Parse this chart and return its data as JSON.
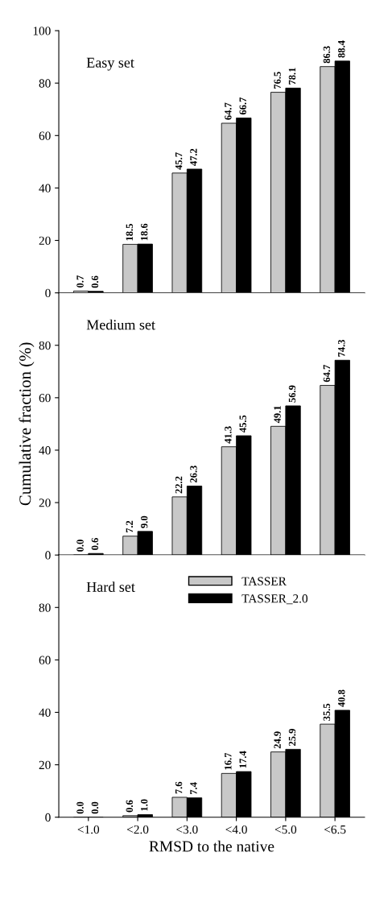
{
  "chart_data": [
    {
      "type": "bar",
      "title": "Easy set",
      "categories": [
        null,
        null,
        null,
        null,
        null,
        null
      ],
      "series": [
        {
          "color": "#c8c8c8",
          "values": [
            0.7,
            18.5,
            45.7,
            64.7,
            76.5,
            86.3
          ],
          "value_labels": [
            "0.7",
            "18.5",
            "45.7",
            "64.7",
            "76.5",
            "86.3"
          ]
        },
        {
          "color": "#000000",
          "values": [
            0.6,
            18.6,
            47.2,
            66.7,
            78.1,
            88.4
          ],
          "value_labels": [
            "0.6",
            "18.6",
            "47.2",
            "66.7",
            "78.1",
            "88.4"
          ]
        }
      ],
      "ylim": [
        0,
        100
      ],
      "yticks": [
        0,
        20,
        40,
        60,
        80,
        100
      ],
      "tick_labels": "y"
    },
    {
      "type": "bar",
      "title": "Medium set",
      "ylabel": "Cumulative fraction (%)",
      "categories": [
        null,
        null,
        null,
        null,
        null,
        null
      ],
      "series": [
        {
          "color": "#c8c8c8",
          "values": [
            0.0,
            7.2,
            22.2,
            41.3,
            49.1,
            64.7
          ],
          "value_labels": [
            "0.0",
            "7.2",
            "22.2",
            "41.3",
            "49.1",
            "64.7"
          ]
        },
        {
          "color": "#000000",
          "values": [
            0.6,
            9.0,
            26.3,
            45.5,
            56.9,
            74.3
          ],
          "value_labels": [
            "0.6",
            "9.0",
            "26.3",
            "45.5",
            "56.9",
            "74.3"
          ]
        }
      ],
      "ylim": [
        0,
        100
      ],
      "yticks": [
        0,
        20,
        40,
        60,
        80
      ],
      "tick_labels": "y"
    },
    {
      "type": "bar",
      "title": "Hard set",
      "xlabel": "RMSD to the native",
      "categories": [
        "<1.0",
        "<2.0",
        "<3.0",
        "<4.0",
        "<5.0",
        "<6.5"
      ],
      "series": [
        {
          "name": "TASSER",
          "color": "#c8c8c8",
          "values": [
            0.0,
            0.6,
            7.6,
            16.7,
            24.9,
            35.5
          ],
          "value_labels": [
            "0.0",
            "0.6",
            "7.6",
            "16.7",
            "24.9",
            "35.5"
          ]
        },
        {
          "name": "TASSER_2.0",
          "color": "#000000",
          "values": [
            0.0,
            1.0,
            7.4,
            17.4,
            25.9,
            40.8
          ],
          "value_labels": [
            "0.0",
            "1.0",
            "7.4",
            "17.4",
            "25.9",
            "40.8"
          ]
        }
      ],
      "ylim": [
        0,
        100
      ],
      "yticks": [
        0,
        20,
        40,
        60,
        80
      ],
      "legend": "top"
    }
  ]
}
